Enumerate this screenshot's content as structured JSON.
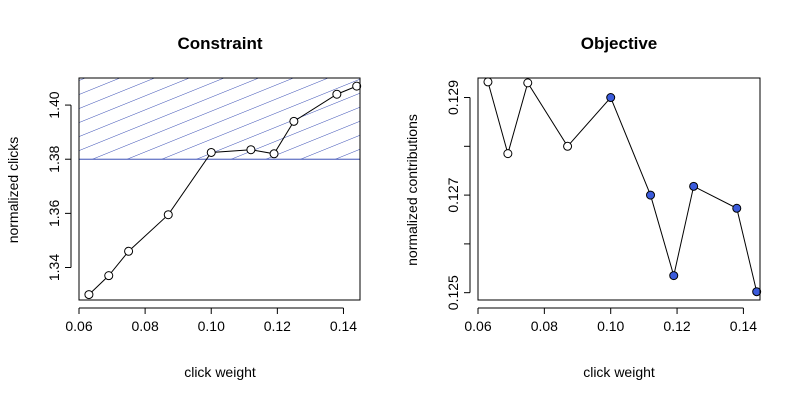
{
  "colors": {
    "region_stroke": "#3a4fb5",
    "point_filled": "#3b5bdb"
  },
  "chart_data": [
    {
      "type": "line",
      "title": "Constraint",
      "xlabel": "click weight",
      "ylabel": "normalized clicks",
      "xlim": [
        0.06,
        0.145
      ],
      "ylim": [
        1.328,
        1.41
      ],
      "x_ticks": [
        0.06,
        0.08,
        0.1,
        0.12,
        0.14
      ],
      "x_tick_labels": [
        "0.06",
        "0.08",
        "0.10",
        "0.12",
        "0.14"
      ],
      "y_ticks": [
        1.34,
        1.36,
        1.38,
        1.4
      ],
      "y_tick_labels": [
        "1.34",
        "1.36",
        "1.38",
        "1.40"
      ],
      "x": [
        0.063,
        0.069,
        0.075,
        0.087,
        0.1,
        0.112,
        0.119,
        0.125,
        0.138,
        0.144
      ],
      "y": [
        1.33,
        1.337,
        1.346,
        1.3595,
        1.3825,
        1.3835,
        1.382,
        1.394,
        1.404,
        1.407
      ],
      "filled": [
        false,
        false,
        false,
        false,
        false,
        false,
        false,
        false,
        false,
        false
      ],
      "shaded_region": {
        "y_from": 1.38,
        "y_to": 1.41,
        "pattern": "diagonal-hatch"
      },
      "grid": false,
      "legend": "none"
    },
    {
      "type": "line",
      "title": "Objective",
      "xlabel": "click weight",
      "ylabel": "normalized contributions",
      "xlim": [
        0.06,
        0.145
      ],
      "ylim": [
        0.12485,
        0.1294
      ],
      "x_ticks": [
        0.06,
        0.08,
        0.1,
        0.12,
        0.14
      ],
      "x_tick_labels": [
        "0.06",
        "0.08",
        "0.10",
        "0.12",
        "0.14"
      ],
      "y_ticks": [
        0.125,
        0.126,
        0.127,
        0.128,
        0.129
      ],
      "y_tick_labels": [
        "0.125",
        "",
        "0.127",
        "",
        "0.129"
      ],
      "x": [
        0.063,
        0.069,
        0.075,
        0.087,
        0.1,
        0.112,
        0.119,
        0.125,
        0.138,
        0.144
      ],
      "y": [
        0.12932,
        0.12785,
        0.1293,
        0.128,
        0.129,
        0.127,
        0.12535,
        0.12718,
        0.12673,
        0.12502
      ],
      "filled": [
        false,
        false,
        false,
        false,
        true,
        true,
        true,
        true,
        true,
        true
      ],
      "grid": false,
      "legend": "none"
    }
  ]
}
